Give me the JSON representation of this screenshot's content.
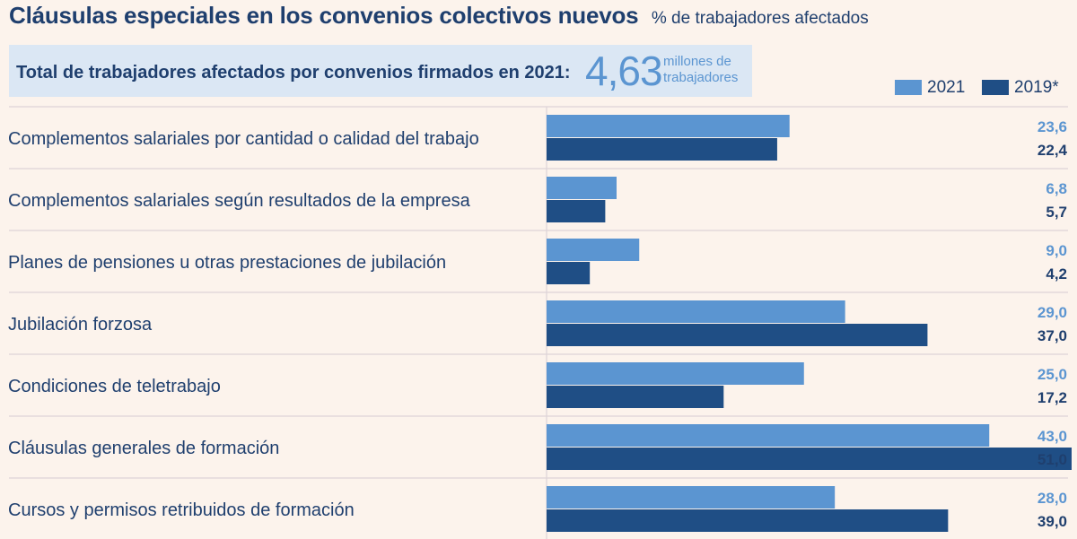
{
  "title": "Cláusulas especiales en los convenios colectivos nuevos",
  "subtitle": "% de trabajadores afectados",
  "total_box": {
    "label": "Total de trabajadores afectados por convenios firmados en 2021:",
    "number": "4,63",
    "unit_line1": "millones de",
    "unit_line2": "trabajadores"
  },
  "colors": {
    "background": "#fcf3ec",
    "series_2021": "#5b95d1",
    "series_2019": "#1f4e85",
    "text": "#1f3f6e",
    "grid": "#ddd3d7",
    "box": "#dbe7f4"
  },
  "chart_data": {
    "type": "bar",
    "orientation": "horizontal",
    "title": "Cláusulas especiales en los convenios colectivos nuevos",
    "subtitle": "% de trabajadores afectados",
    "categories": [
      "Complementos salariales por cantidad o calidad del trabajo",
      "Complementos salariales según resultados de la empresa",
      "Planes de pensiones u otras prestaciones de jubilación",
      "Jubilación forzosa",
      "Condiciones de teletrabajo",
      "Cláusulas generales de formación",
      "Cursos y permisos retribuidos de formación"
    ],
    "series": [
      {
        "name": "2021",
        "values": [
          23.6,
          6.8,
          9.0,
          29.0,
          25.0,
          43.0,
          28.0
        ],
        "labels": [
          "23,6",
          "6,8",
          "9,0",
          "29,0",
          "25,0",
          "43,0",
          "28,0"
        ]
      },
      {
        "name": "2019*",
        "values": [
          22.4,
          5.7,
          4.2,
          37.0,
          17.2,
          51.0,
          39.0
        ],
        "labels": [
          "22,4",
          "5,7",
          "4,2",
          "37,0",
          "17,2",
          "51,0",
          "39,0"
        ]
      }
    ],
    "xlim": [
      0,
      51
    ],
    "legend_position": "top-right",
    "grid": false
  }
}
